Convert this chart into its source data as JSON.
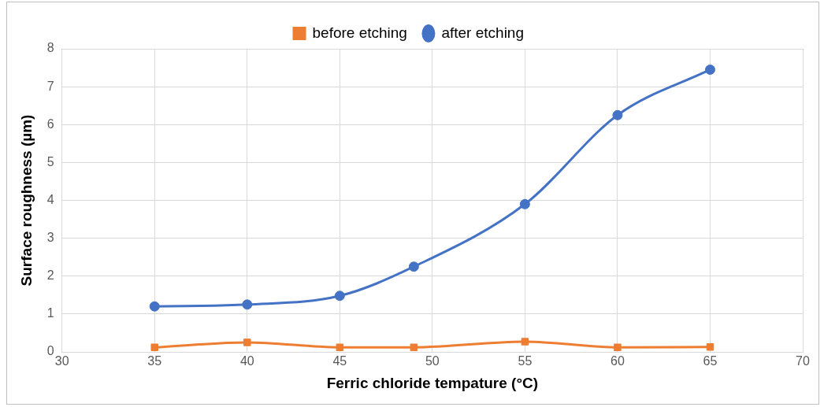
{
  "chart_data": {
    "type": "line",
    "xlabel": "Ferric chloride tempature (°C)",
    "ylabel": "Surface roughness (µm)",
    "x": [
      35,
      40,
      45,
      49,
      55,
      60,
      65
    ],
    "series": [
      {
        "name": "before etching",
        "color": "#ed7d31",
        "marker": "square",
        "values": [
          0.12,
          0.25,
          0.12,
          0.12,
          0.27,
          0.12,
          0.13
        ]
      },
      {
        "name": "after etching",
        "color": "#4472c4",
        "marker": "circle",
        "values": [
          1.2,
          1.25,
          1.48,
          2.25,
          3.9,
          6.25,
          7.45
        ]
      }
    ],
    "xlim": [
      30,
      70
    ],
    "xticks": [
      30,
      35,
      40,
      45,
      50,
      55,
      60,
      65,
      70
    ],
    "ylim": [
      0,
      8
    ],
    "yticks": [
      0,
      1,
      2,
      3,
      4,
      5,
      6,
      7,
      8
    ],
    "grid": true,
    "legend": "top",
    "line_style": "solid"
  }
}
